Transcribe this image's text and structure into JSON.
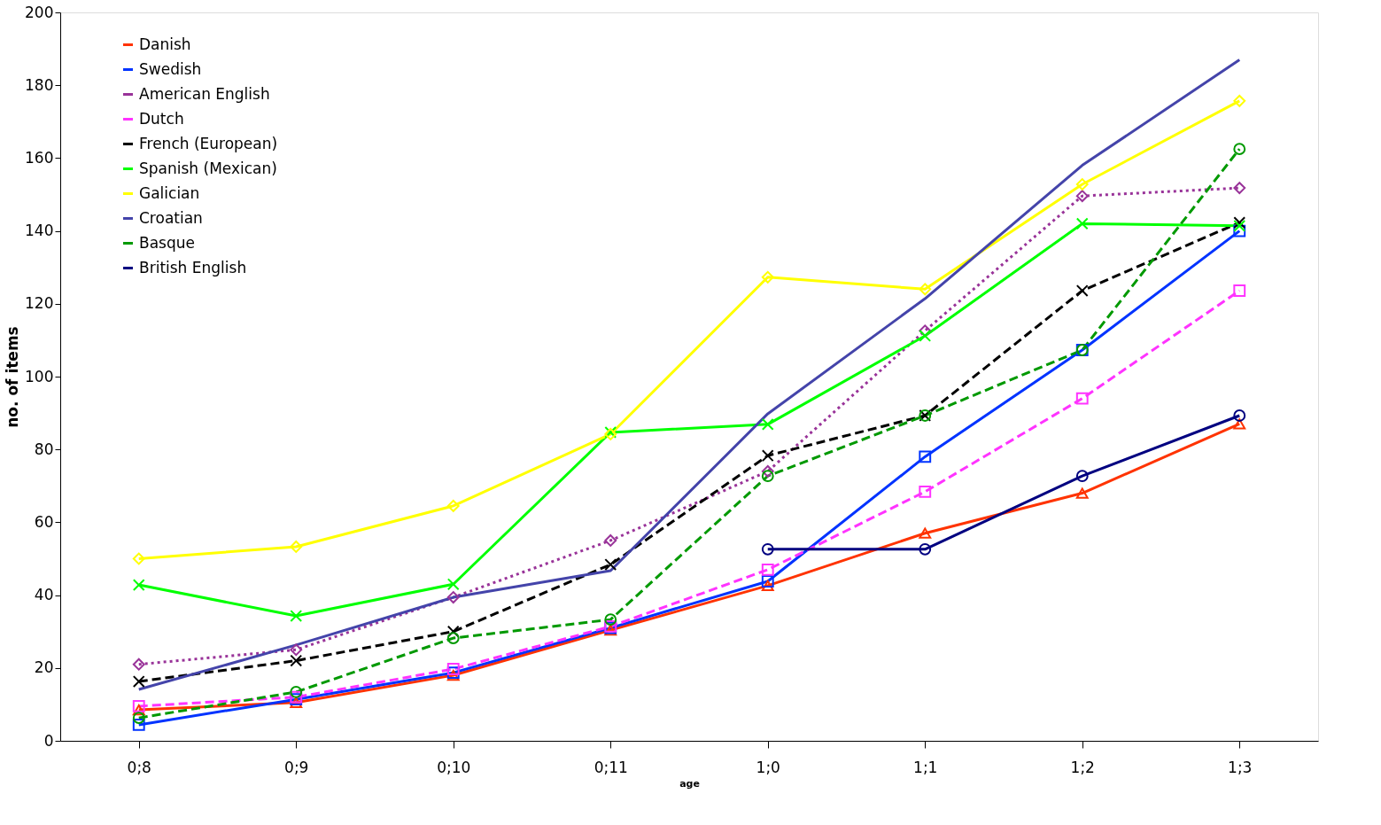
{
  "chart_data": {
    "type": "line",
    "xlabel": "age",
    "ylabel": "no. of items",
    "categories": [
      "0;8",
      "0;9",
      "0;10",
      "0;11",
      "1;0",
      "1;1",
      "1;2",
      "1;3"
    ],
    "ylim": [
      0,
      200
    ],
    "yticks": [
      0,
      20,
      40,
      60,
      80,
      100,
      120,
      140,
      160,
      180,
      200
    ],
    "grid": false,
    "legend": "top left",
    "series": [
      {
        "name": "Danish",
        "color": "#ff3300",
        "marker": "triangle",
        "line_style": "solid",
        "values": [
          8.5,
          10.5,
          18,
          30.4,
          42.6,
          57,
          68,
          87
        ]
      },
      {
        "name": "Swedish",
        "color": "#0033ff",
        "marker": "square",
        "line_style": "solid",
        "values": [
          4.4,
          11.4,
          18.7,
          31,
          43.8,
          78,
          107.3,
          140
        ]
      },
      {
        "name": "American English",
        "color": "#993399",
        "marker": "diamond",
        "line_style": "dotted",
        "values": [
          21,
          25,
          39.4,
          55,
          74,
          112.6,
          149.6,
          151.8
        ]
      },
      {
        "name": "Dutch",
        "color": "#ff33ff",
        "marker": "square",
        "line_style": "dashed",
        "values": [
          9.5,
          12,
          19.7,
          31.4,
          47,
          68.4,
          94,
          123.6
        ]
      },
      {
        "name": "French (European)",
        "color": "#000000",
        "marker": "cross",
        "line_style": "dashed",
        "values": [
          16.3,
          22,
          30,
          48.4,
          78.3,
          89.3,
          123.6,
          142.3
        ]
      },
      {
        "name": "Spanish (Mexican)",
        "color": "#00ff00",
        "marker": "cross",
        "line_style": "solid",
        "values": [
          42.8,
          34.3,
          43,
          84.7,
          86.9,
          111.2,
          142,
          141.4
        ]
      },
      {
        "name": "Galician",
        "color": "#ffff00",
        "marker": "diamond",
        "line_style": "solid",
        "values": [
          50,
          53.3,
          64.5,
          84.2,
          127.3,
          124,
          152.8,
          175.7
        ]
      },
      {
        "name": "Croatian",
        "color": "#4444aa",
        "marker": "none",
        "line_style": "solid",
        "values": [
          14.1,
          26.3,
          39.4,
          46.7,
          89.8,
          121.4,
          158,
          187
        ]
      },
      {
        "name": "Basque",
        "color": "#009900",
        "marker": "circle",
        "line_style": "dashed",
        "values": [
          6.3,
          13.4,
          28.2,
          33.3,
          72.7,
          89.3,
          107.3,
          162.5
        ]
      },
      {
        "name": "British English",
        "color": "#000080",
        "marker": "circle",
        "line_style": "solid",
        "values": [
          null,
          null,
          null,
          null,
          52.6,
          52.6,
          72.7,
          89.3
        ]
      }
    ]
  }
}
